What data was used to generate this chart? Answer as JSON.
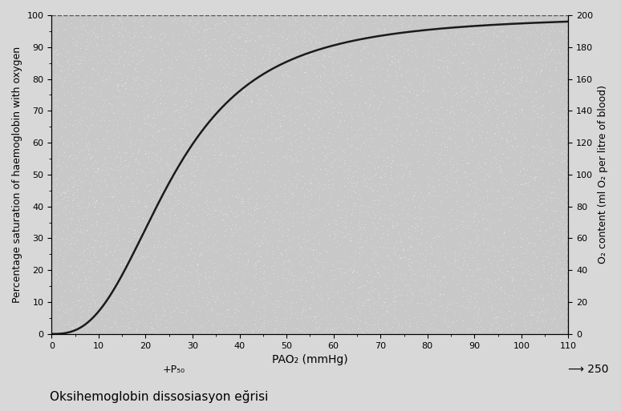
{
  "title": "",
  "subtitle": "Oksihemoglobin dissosiasyon eğrisi",
  "xlabel": "PAO₂ (mmHg)",
  "ylabel_left": "Percentage saturation of haemoglobin with oxygen",
  "ylabel_right": "O₂ content (ml O₂ per litre of blood)",
  "xlim": [
    0,
    110
  ],
  "ylim_left": [
    0,
    100
  ],
  "ylim_right": [
    0,
    200
  ],
  "xticks": [
    0,
    10,
    20,
    30,
    40,
    50,
    60,
    70,
    80,
    90,
    100,
    110
  ],
  "yticks_left": [
    0,
    10,
    20,
    30,
    40,
    50,
    60,
    70,
    80,
    90,
    100
  ],
  "yticks_right": [
    0,
    20,
    40,
    60,
    80,
    100,
    120,
    140,
    160,
    180,
    200
  ],
  "p50_label": "+P₅₀",
  "p50_x": 26,
  "arrow_label": "⟶ 250",
  "dashed_line_x": 110,
  "dashed_line_y": 100,
  "curve_color": "#1a1a1a",
  "dashed_color": "#555555",
  "background_color": "#c8c8c8",
  "fig_background": "#d8d8d8",
  "hill_n": 2.7,
  "p50": 26.0
}
